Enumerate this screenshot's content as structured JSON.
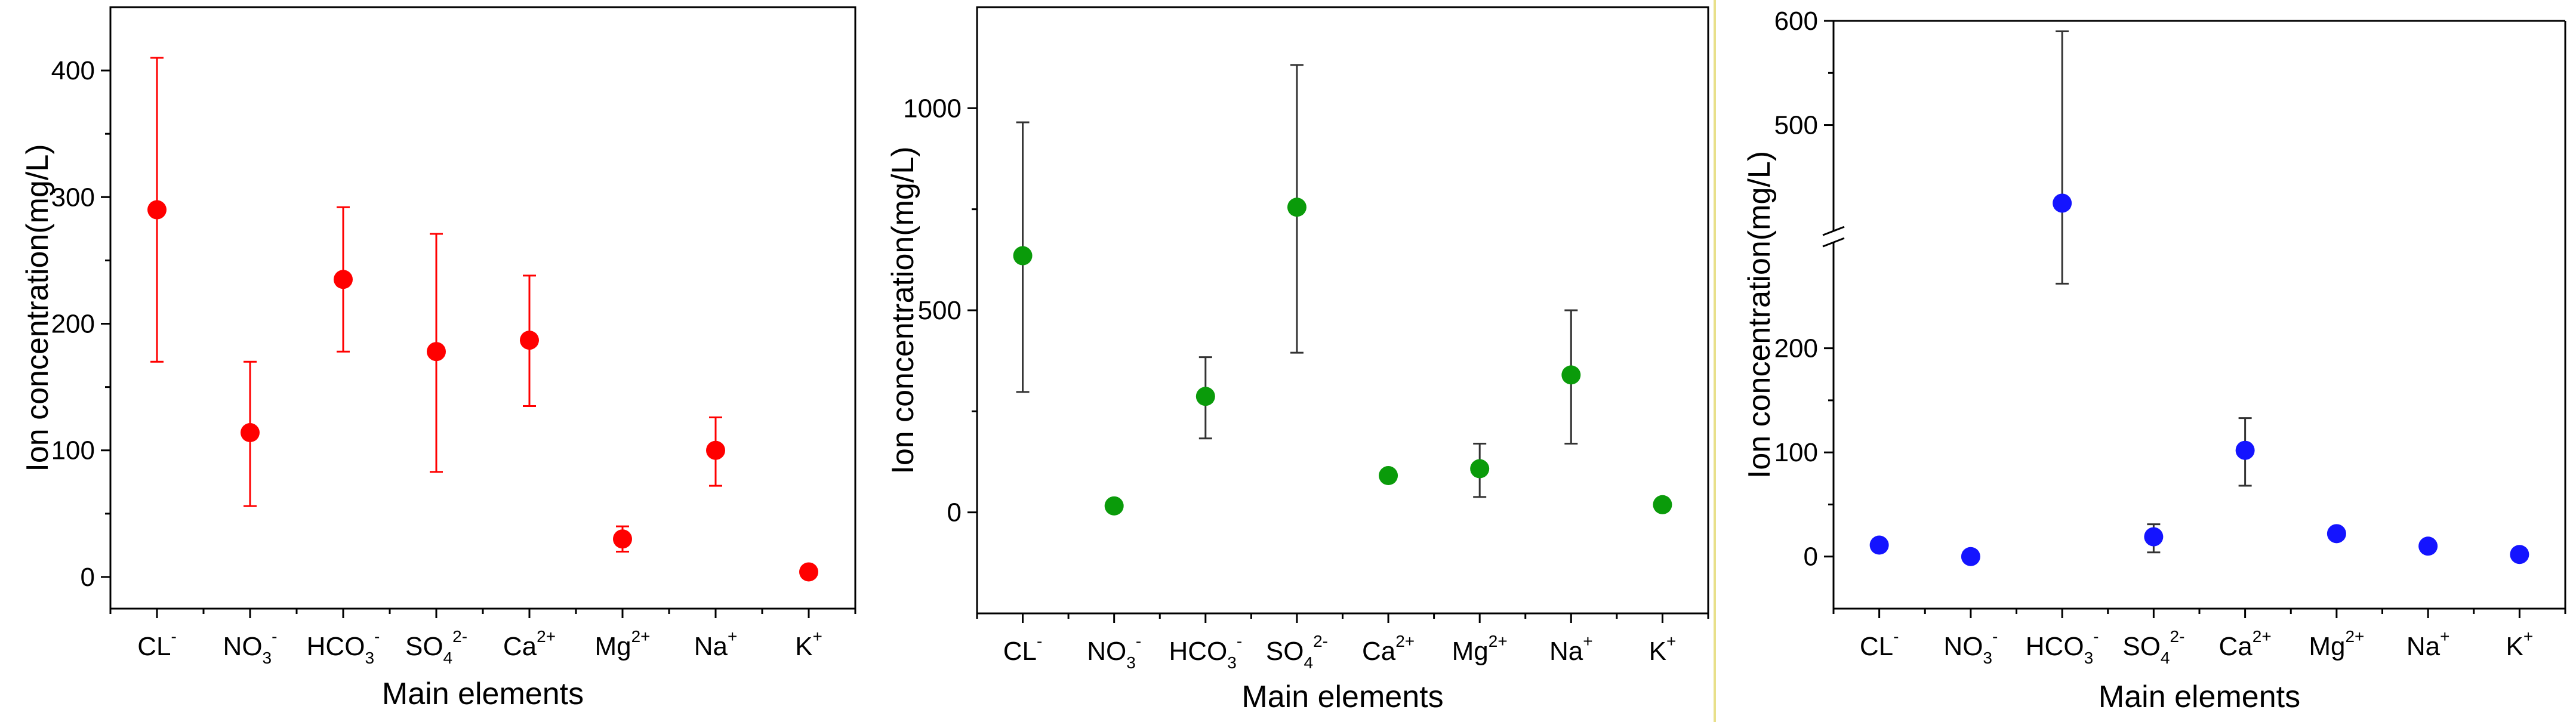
{
  "colors": {
    "panel1": "#ff0000",
    "panel2": "#0a9b0a",
    "panel3": "#1414ff",
    "error_bar2": "#333333",
    "error_bar3": "#333333",
    "divider": "#e8e08a"
  },
  "chart_data": [
    {
      "type": "scatter",
      "panel": "left",
      "xlabel": "Main elements",
      "ylabel": "Ion concentration(mg/L)",
      "categories": [
        {
          "base": "CL",
          "sub": "",
          "sup": "-"
        },
        {
          "base": "NO",
          "sub": "3",
          "sup": "-"
        },
        {
          "base": "HCO",
          "sub": "3",
          "sup": "-"
        },
        {
          "base": "SO",
          "sub": "4",
          "sup": "2-"
        },
        {
          "base": "Ca",
          "sub": "",
          "sup": "2+"
        },
        {
          "base": "Mg",
          "sub": "",
          "sup": "2+"
        },
        {
          "base": "Na",
          "sub": "",
          "sup": "+"
        },
        {
          "base": "K",
          "sub": "",
          "sup": "+"
        }
      ],
      "values": [
        290,
        114,
        235,
        178,
        187,
        30,
        100,
        4
      ],
      "error_low": [
        170,
        56,
        178,
        83,
        135,
        20,
        72,
        null
      ],
      "error_high": [
        410,
        170,
        292,
        271,
        238,
        40,
        126,
        null
      ],
      "ylim": [
        -25,
        450
      ],
      "yticks": [
        0,
        100,
        200,
        300,
        400
      ],
      "ytick_labels": [
        "0",
        "100",
        "200",
        "300",
        "400"
      ],
      "grid": false,
      "legend": "none",
      "marker_color": "#ff0000",
      "error_color": "#ff0000"
    },
    {
      "type": "scatter",
      "panel": "middle",
      "xlabel": "Main elements",
      "ylabel": "Ion concentration(mg/L)",
      "categories": [
        {
          "base": "CL",
          "sub": "",
          "sup": "-"
        },
        {
          "base": "NO",
          "sub": "3",
          "sup": "-"
        },
        {
          "base": "HCO",
          "sub": "3",
          "sup": "-"
        },
        {
          "base": "SO",
          "sub": "4",
          "sup": "2-"
        },
        {
          "base": "Ca",
          "sub": "",
          "sup": "2+"
        },
        {
          "base": "Mg",
          "sub": "",
          "sup": "2+"
        },
        {
          "base": "Na",
          "sub": "",
          "sup": "+"
        },
        {
          "base": "K",
          "sub": "",
          "sup": "+"
        }
      ],
      "values": [
        635,
        16,
        287,
        755,
        91,
        108,
        340,
        19
      ],
      "error_low": [
        298,
        null,
        183,
        395,
        null,
        38,
        170,
        null
      ],
      "error_high": [
        965,
        null,
        384,
        1107,
        null,
        170,
        500,
        null
      ],
      "ylim": [
        -250,
        1250
      ],
      "yticks": [
        0,
        500,
        1000
      ],
      "ytick_labels": [
        "0",
        "500",
        "1000"
      ],
      "grid": false,
      "legend": "none",
      "marker_color": "#0a9b0a",
      "error_color": "#333333"
    },
    {
      "type": "scatter",
      "panel": "right",
      "xlabel": "Main elements",
      "ylabel": "Ion concentration(mg/L)",
      "broken_axis": {
        "lower": [
          -50,
          300
        ],
        "upper": [
          400,
          600
        ],
        "break_at": 300
      },
      "categories": [
        {
          "base": "CL",
          "sub": "",
          "sup": "-"
        },
        {
          "base": "NO",
          "sub": "3",
          "sup": "-"
        },
        {
          "base": "HCO",
          "sub": "3",
          "sup": "-"
        },
        {
          "base": "SO",
          "sub": "4",
          "sup": "2-"
        },
        {
          "base": "Ca",
          "sub": "",
          "sup": "2+"
        },
        {
          "base": "Mg",
          "sub": "",
          "sup": "2+"
        },
        {
          "base": "Na",
          "sub": "",
          "sup": "+"
        },
        {
          "base": "K",
          "sub": "",
          "sup": "+"
        }
      ],
      "values": [
        11,
        0,
        425,
        19,
        102,
        22,
        10,
        2
      ],
      "error_low": [
        null,
        null,
        262,
        4,
        68,
        null,
        null,
        null
      ],
      "error_high": [
        null,
        null,
        590,
        31,
        133,
        null,
        null,
        null
      ],
      "yticks": [
        0,
        100,
        200,
        500,
        600
      ],
      "ytick_labels": [
        "0",
        "100",
        "200",
        "500",
        "600"
      ],
      "grid": false,
      "legend": "none",
      "marker_color": "#1414ff",
      "error_color": "#333333"
    }
  ]
}
